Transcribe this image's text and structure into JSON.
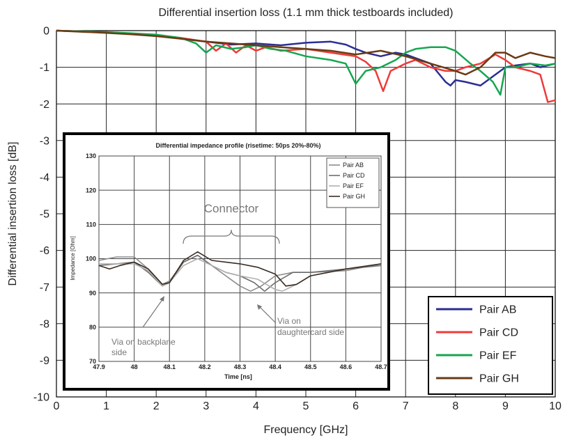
{
  "colors": {
    "pair_ab": "#2b2e92",
    "pair_cd": "#ee3a39",
    "pair_ef": "#16a650",
    "pair_gh": "#6a3a14",
    "inset_ab": "#8c8c8c",
    "inset_cd": "#6e6e6e",
    "inset_ef": "#b0b0b0",
    "inset_gh": "#3a2a20"
  },
  "chart_data": [
    {
      "type": "line",
      "title": "Differential insertion loss (1.1 mm thick testboards included)",
      "xlabel": "Frequency [GHz]",
      "ylabel": "Differential insertion loss [dB]",
      "xlim": [
        0,
        10
      ],
      "ylim": [
        -10,
        0
      ],
      "xticks": [
        "0",
        "1",
        "2",
        "3",
        "4",
        "5",
        "6",
        "7",
        "8",
        "9",
        "10"
      ],
      "yticks": [
        "0",
        "-1",
        "-2",
        "-3",
        "-4",
        "-5",
        "-6",
        "-7",
        "-8",
        "-9",
        "-10"
      ],
      "grid": true,
      "legend": "bottom-right",
      "series": [
        {
          "name": "Pair AB",
          "x": [
            0,
            0.5,
            1,
            1.5,
            2,
            2.5,
            3,
            3.5,
            4,
            4.5,
            5,
            5.5,
            5.8,
            6,
            6.2,
            6.5,
            6.8,
            7,
            7.2,
            7.5,
            7.8,
            7.9,
            8,
            8.2,
            8.5,
            8.8,
            9,
            9.2,
            9.5,
            9.7,
            10
          ],
          "y": [
            0,
            -0.02,
            -0.05,
            -0.08,
            -0.13,
            -0.22,
            -0.3,
            -0.38,
            -0.35,
            -0.4,
            -0.33,
            -0.3,
            -0.38,
            -0.5,
            -0.6,
            -0.7,
            -0.6,
            -0.65,
            -0.75,
            -0.9,
            -1.4,
            -1.5,
            -1.35,
            -1.4,
            -1.5,
            -1.2,
            -1.0,
            -0.95,
            -0.9,
            -1.0,
            -0.9
          ]
        },
        {
          "name": "Pair CD",
          "x": [
            0,
            0.5,
            1,
            1.5,
            2,
            2.5,
            3,
            3.2,
            3.4,
            3.6,
            3.8,
            4,
            4.2,
            4.5,
            5,
            5.5,
            6,
            6.2,
            6.4,
            6.55,
            6.7,
            7,
            7.2,
            7.5,
            7.8,
            8,
            8.2,
            8.5,
            8.8,
            9,
            9.2,
            9.5,
            9.7,
            9.85,
            10
          ],
          "y": [
            0,
            -0.02,
            -0.04,
            -0.08,
            -0.12,
            -0.2,
            -0.3,
            -0.55,
            -0.35,
            -0.6,
            -0.4,
            -0.55,
            -0.45,
            -0.55,
            -0.5,
            -0.6,
            -0.7,
            -0.85,
            -1.1,
            -1.65,
            -1.1,
            -0.9,
            -0.8,
            -1.0,
            -1.1,
            -1.1,
            -1.0,
            -0.9,
            -0.65,
            -0.8,
            -1.0,
            -1.1,
            -1.2,
            -1.95,
            -1.9
          ]
        },
        {
          "name": "Pair EF",
          "x": [
            0,
            0.5,
            1,
            1.5,
            2,
            2.5,
            2.8,
            3,
            3.2,
            3.5,
            3.8,
            4,
            4.3,
            4.6,
            5,
            5.5,
            5.8,
            6,
            6.2,
            6.5,
            6.8,
            7,
            7.2,
            7.5,
            7.8,
            8,
            8.3,
            8.5,
            8.75,
            8.9,
            9,
            9.2,
            9.5,
            9.8,
            10
          ],
          "y": [
            0,
            -0.02,
            -0.04,
            -0.07,
            -0.11,
            -0.2,
            -0.35,
            -0.6,
            -0.4,
            -0.5,
            -0.45,
            -0.4,
            -0.5,
            -0.55,
            -0.7,
            -0.8,
            -0.9,
            -1.45,
            -1.1,
            -1.0,
            -0.8,
            -0.6,
            -0.5,
            -0.45,
            -0.45,
            -0.55,
            -0.9,
            -1.1,
            -1.4,
            -1.75,
            -1.0,
            -1.0,
            -0.9,
            -0.95,
            -0.9
          ]
        },
        {
          "name": "Pair GH",
          "x": [
            0,
            0.5,
            1,
            1.5,
            2,
            2.5,
            3,
            3.5,
            4,
            4.5,
            5,
            5.5,
            6,
            6.5,
            7,
            7.5,
            8,
            8.2,
            8.5,
            8.8,
            9,
            9.2,
            9.5,
            9.8,
            10
          ],
          "y": [
            0,
            -0.03,
            -0.06,
            -0.1,
            -0.15,
            -0.22,
            -0.3,
            -0.35,
            -0.4,
            -0.45,
            -0.5,
            -0.55,
            -0.65,
            -0.55,
            -0.7,
            -0.9,
            -1.1,
            -1.2,
            -1.0,
            -0.6,
            -0.6,
            -0.75,
            -0.6,
            -0.7,
            -0.75
          ]
        }
      ]
    },
    {
      "type": "line",
      "title": "Differential impedance profile (risetime: 50ps 20%-80%)",
      "xlabel": "Time [ns]",
      "ylabel": "Impedance [Ohm]",
      "xlim": [
        47.9,
        48.7
      ],
      "ylim": [
        70,
        130
      ],
      "xticks": [
        "47.9",
        "48",
        "48.1",
        "48.2",
        "48.3",
        "48.4",
        "48.5",
        "48.6",
        "48.7"
      ],
      "yticks": [
        "70",
        "80",
        "90",
        "100",
        "110",
        "120",
        "130"
      ],
      "grid": true,
      "legend": "top-right",
      "series": [
        {
          "name": "Pair AB",
          "x": [
            47.9,
            47.95,
            48.0,
            48.04,
            48.08,
            48.1,
            48.14,
            48.18,
            48.22,
            48.26,
            48.3,
            48.33,
            48.36,
            48.4,
            48.45,
            48.5,
            48.6,
            48.7
          ],
          "y": [
            99.5,
            100.5,
            100.5,
            97,
            92.5,
            93.5,
            99,
            101,
            98,
            95,
            92,
            90.5,
            92,
            95,
            96,
            96,
            96.5,
            98.5
          ]
        },
        {
          "name": "Pair CD",
          "x": [
            47.9,
            47.95,
            48.0,
            48.04,
            48.08,
            48.1,
            48.14,
            48.18,
            48.22,
            48.26,
            48.3,
            48.34,
            48.37,
            48.4,
            48.45,
            48.5,
            48.6,
            48.7
          ],
          "y": [
            98,
            98.5,
            99,
            96,
            92,
            93,
            99,
            101,
            98,
            96,
            95,
            93,
            90.5,
            93,
            96,
            96,
            97,
            98
          ]
        },
        {
          "name": "Pair EF",
          "x": [
            47.9,
            47.95,
            48.0,
            48.04,
            48.08,
            48.1,
            48.14,
            48.18,
            48.22,
            48.26,
            48.3,
            48.35,
            48.4,
            48.42,
            48.46,
            48.5,
            48.6,
            48.7
          ],
          "y": [
            98.5,
            98.5,
            98.5,
            96.5,
            92,
            93,
            98,
            100,
            98,
            96,
            95,
            94,
            91,
            90.5,
            92.5,
            95,
            97,
            98.5
          ]
        },
        {
          "name": "Pair GH",
          "x": [
            47.9,
            47.93,
            47.96,
            48.0,
            48.04,
            48.08,
            48.1,
            48.14,
            48.18,
            48.22,
            48.26,
            48.3,
            48.35,
            48.4,
            48.43,
            48.46,
            48.5,
            48.6,
            48.7
          ],
          "y": [
            98,
            97,
            98,
            99,
            97,
            92.5,
            93,
            99.5,
            102,
            99.5,
            99,
            98.5,
            97.5,
            95.5,
            92,
            92.5,
            95,
            97,
            98.5
          ]
        }
      ],
      "annotations": {
        "connector": "Connector",
        "via_backplane": [
          "Via on backplane",
          "side"
        ],
        "via_daughtercard": [
          "Via on",
          "daughtercard side"
        ]
      }
    }
  ]
}
